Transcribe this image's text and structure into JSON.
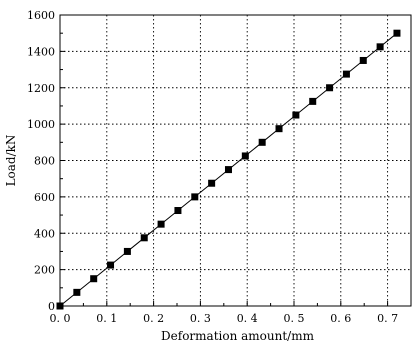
{
  "chart_data": {
    "type": "line",
    "title": "",
    "xlabel": "Deformation amount/mm",
    "ylabel": "Load/kN",
    "xlim": [
      0.0,
      0.75
    ],
    "ylim": [
      0,
      1600
    ],
    "x_ticks": [
      0.0,
      0.1,
      0.2,
      0.3,
      0.4,
      0.5,
      0.6,
      0.7
    ],
    "x_tick_labels": [
      "0. 0",
      "0. 1",
      "0. 2",
      "0. 3",
      "0. 4",
      "0. 5",
      "0. 6",
      "0. 7"
    ],
    "y_ticks": [
      0,
      200,
      400,
      600,
      800,
      1000,
      1200,
      1400,
      1600
    ],
    "y_tick_labels": [
      "0",
      "200",
      "400",
      "600",
      "800",
      "1000",
      "1200",
      "1400",
      "1600"
    ],
    "grid": true,
    "marker": "square",
    "series": [
      {
        "x": [
          0.0,
          0.036,
          0.072,
          0.108,
          0.144,
          0.18,
          0.216,
          0.252,
          0.288,
          0.324,
          0.36,
          0.396,
          0.432,
          0.468,
          0.504,
          0.54,
          0.576,
          0.612,
          0.648,
          0.684,
          0.72
        ],
        "values": [
          0,
          75,
          150,
          225,
          300,
          375,
          450,
          525,
          600,
          675,
          750,
          825,
          900,
          975,
          1050,
          1125,
          1200,
          1275,
          1350,
          1425,
          1500
        ]
      }
    ],
    "colors": {
      "line": "#000000",
      "marker": "#000000",
      "grid": "#000000"
    }
  }
}
